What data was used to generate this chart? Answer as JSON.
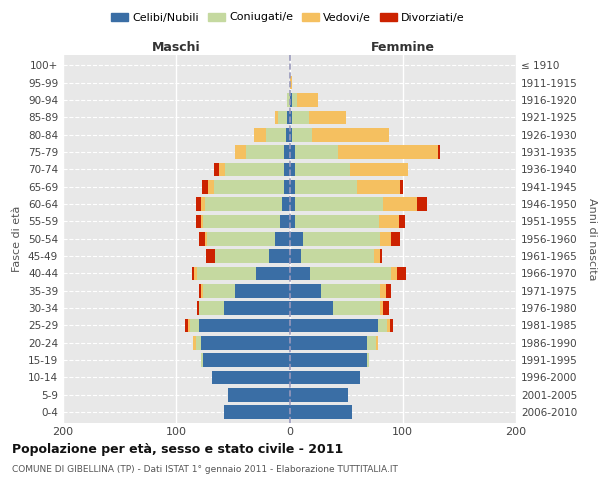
{
  "age_groups": [
    "0-4",
    "5-9",
    "10-14",
    "15-19",
    "20-24",
    "25-29",
    "30-34",
    "35-39",
    "40-44",
    "45-49",
    "50-54",
    "55-59",
    "60-64",
    "65-69",
    "70-74",
    "75-79",
    "80-84",
    "85-89",
    "90-94",
    "95-99",
    "100+"
  ],
  "birth_years": [
    "2006-2010",
    "2001-2005",
    "1996-2000",
    "1991-1995",
    "1986-1990",
    "1981-1985",
    "1976-1980",
    "1971-1975",
    "1966-1970",
    "1961-1965",
    "1956-1960",
    "1951-1955",
    "1946-1950",
    "1941-1945",
    "1936-1940",
    "1931-1935",
    "1926-1930",
    "1921-1925",
    "1916-1920",
    "1911-1915",
    "≤ 1910"
  ],
  "maschi": {
    "celibi": [
      58,
      54,
      68,
      76,
      78,
      80,
      58,
      48,
      30,
      18,
      13,
      8,
      7,
      5,
      5,
      5,
      3,
      2,
      0,
      0,
      0
    ],
    "coniugati": [
      0,
      0,
      0,
      2,
      5,
      8,
      22,
      28,
      52,
      48,
      60,
      68,
      68,
      62,
      52,
      33,
      18,
      8,
      2,
      0,
      0
    ],
    "vedovi": [
      0,
      0,
      0,
      0,
      2,
      2,
      0,
      2,
      2,
      0,
      2,
      2,
      3,
      5,
      5,
      10,
      10,
      3,
      0,
      0,
      0
    ],
    "divorziati": [
      0,
      0,
      0,
      0,
      0,
      2,
      2,
      2,
      2,
      8,
      5,
      5,
      5,
      5,
      5,
      0,
      0,
      0,
      0,
      0,
      0
    ]
  },
  "femmine": {
    "nubili": [
      55,
      52,
      62,
      68,
      68,
      78,
      38,
      28,
      18,
      10,
      12,
      5,
      5,
      5,
      5,
      5,
      2,
      2,
      2,
      0,
      0
    ],
    "coniugate": [
      0,
      0,
      0,
      2,
      8,
      8,
      42,
      52,
      72,
      65,
      68,
      74,
      78,
      55,
      48,
      38,
      18,
      15,
      5,
      0,
      0
    ],
    "vedove": [
      0,
      0,
      0,
      0,
      2,
      3,
      3,
      5,
      5,
      5,
      10,
      18,
      30,
      38,
      52,
      88,
      68,
      33,
      18,
      2,
      0
    ],
    "divorziate": [
      0,
      0,
      0,
      0,
      0,
      2,
      5,
      5,
      8,
      2,
      8,
      5,
      8,
      2,
      0,
      2,
      0,
      0,
      0,
      0,
      0
    ]
  },
  "colors": {
    "celibi": "#3a6ea5",
    "coniugati": "#c5d9a0",
    "vedovi": "#f5c060",
    "divorziati": "#cc2200"
  },
  "xlim": [
    -200,
    200
  ],
  "xticks": [
    -200,
    -100,
    0,
    100,
    200
  ],
  "xticklabels": [
    "200",
    "100",
    "0",
    "100",
    "200"
  ],
  "title": "Popolazione per età, sesso e stato civile - 2011",
  "subtitle": "COMUNE DI GIBELLINA (TP) - Dati ISTAT 1° gennaio 2011 - Elaborazione TUTTITALIA.IT",
  "ylabel_left": "Fasce di età",
  "ylabel_right": "Anni di nascita",
  "label_maschi": "Maschi",
  "label_femmine": "Femmine",
  "legend_labels": [
    "Celibi/Nubili",
    "Coniugati/e",
    "Vedovi/e",
    "Divorziati/e"
  ],
  "legend_colors": [
    "#3a6ea5",
    "#c5d9a0",
    "#f5c060",
    "#cc2200"
  ]
}
